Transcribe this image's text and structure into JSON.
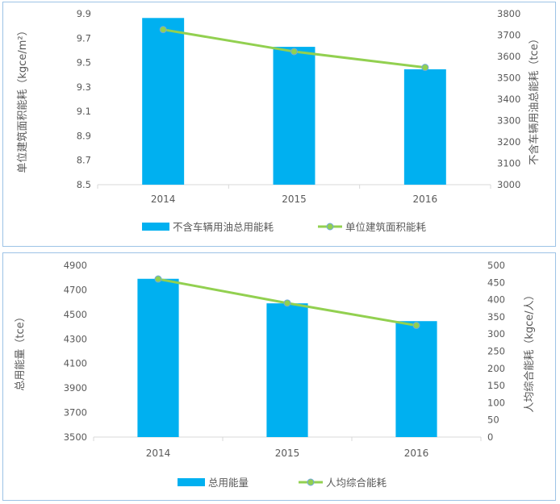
{
  "chart_data": [
    {
      "type": "bar+line",
      "categories": [
        "2014",
        "2015",
        "2016"
      ],
      "series": [
        {
          "name": "不含车辆用油总用能耗",
          "type": "bar",
          "axis": "right",
          "values": [
            3780,
            3645,
            3540
          ],
          "color": "#00b0f0"
        },
        {
          "name": "单位建筑面积能耗",
          "type": "line",
          "axis": "left",
          "values": [
            9.77,
            9.59,
            9.46
          ],
          "color": "#92d050"
        }
      ],
      "y_left": {
        "label": "单位建筑面积能耗（kgce/m²）",
        "ticks": [
          "8.5",
          "8.7",
          "8.9",
          "9.1",
          "9.3",
          "9.5",
          "9.7",
          "9.9"
        ],
        "range": [
          8.5,
          9.9
        ]
      },
      "y_right": {
        "label": "不含车辆用油总能耗（tce）",
        "ticks": [
          "3000",
          "3100",
          "3200",
          "3300",
          "3400",
          "3500",
          "3600",
          "3700",
          "3800"
        ],
        "range": [
          3000,
          3800
        ]
      },
      "grid": false,
      "legend": "bottom"
    },
    {
      "type": "bar+line",
      "categories": [
        "2014",
        "2015",
        "2016"
      ],
      "series": [
        {
          "name": "总用能量",
          "type": "bar",
          "axis": "left",
          "values": [
            4790,
            4590,
            4445
          ],
          "color": "#00b0f0"
        },
        {
          "name": "人均综合能耗",
          "type": "line",
          "axis": "right",
          "values": [
            460,
            390,
            325
          ],
          "color": "#92d050"
        }
      ],
      "y_left": {
        "label": "总用能量（tce）",
        "ticks": [
          "3500",
          "3700",
          "3900",
          "4100",
          "4300",
          "4500",
          "4700",
          "4900"
        ],
        "range": [
          3500,
          4900
        ]
      },
      "y_right": {
        "label": "人均综合能耗（kgce/人）",
        "ticks": [
          "0",
          "50",
          "100",
          "150",
          "200",
          "250",
          "300",
          "350",
          "400",
          "450",
          "500"
        ],
        "range": [
          0,
          500
        ]
      },
      "grid": false,
      "legend": "bottom"
    }
  ]
}
